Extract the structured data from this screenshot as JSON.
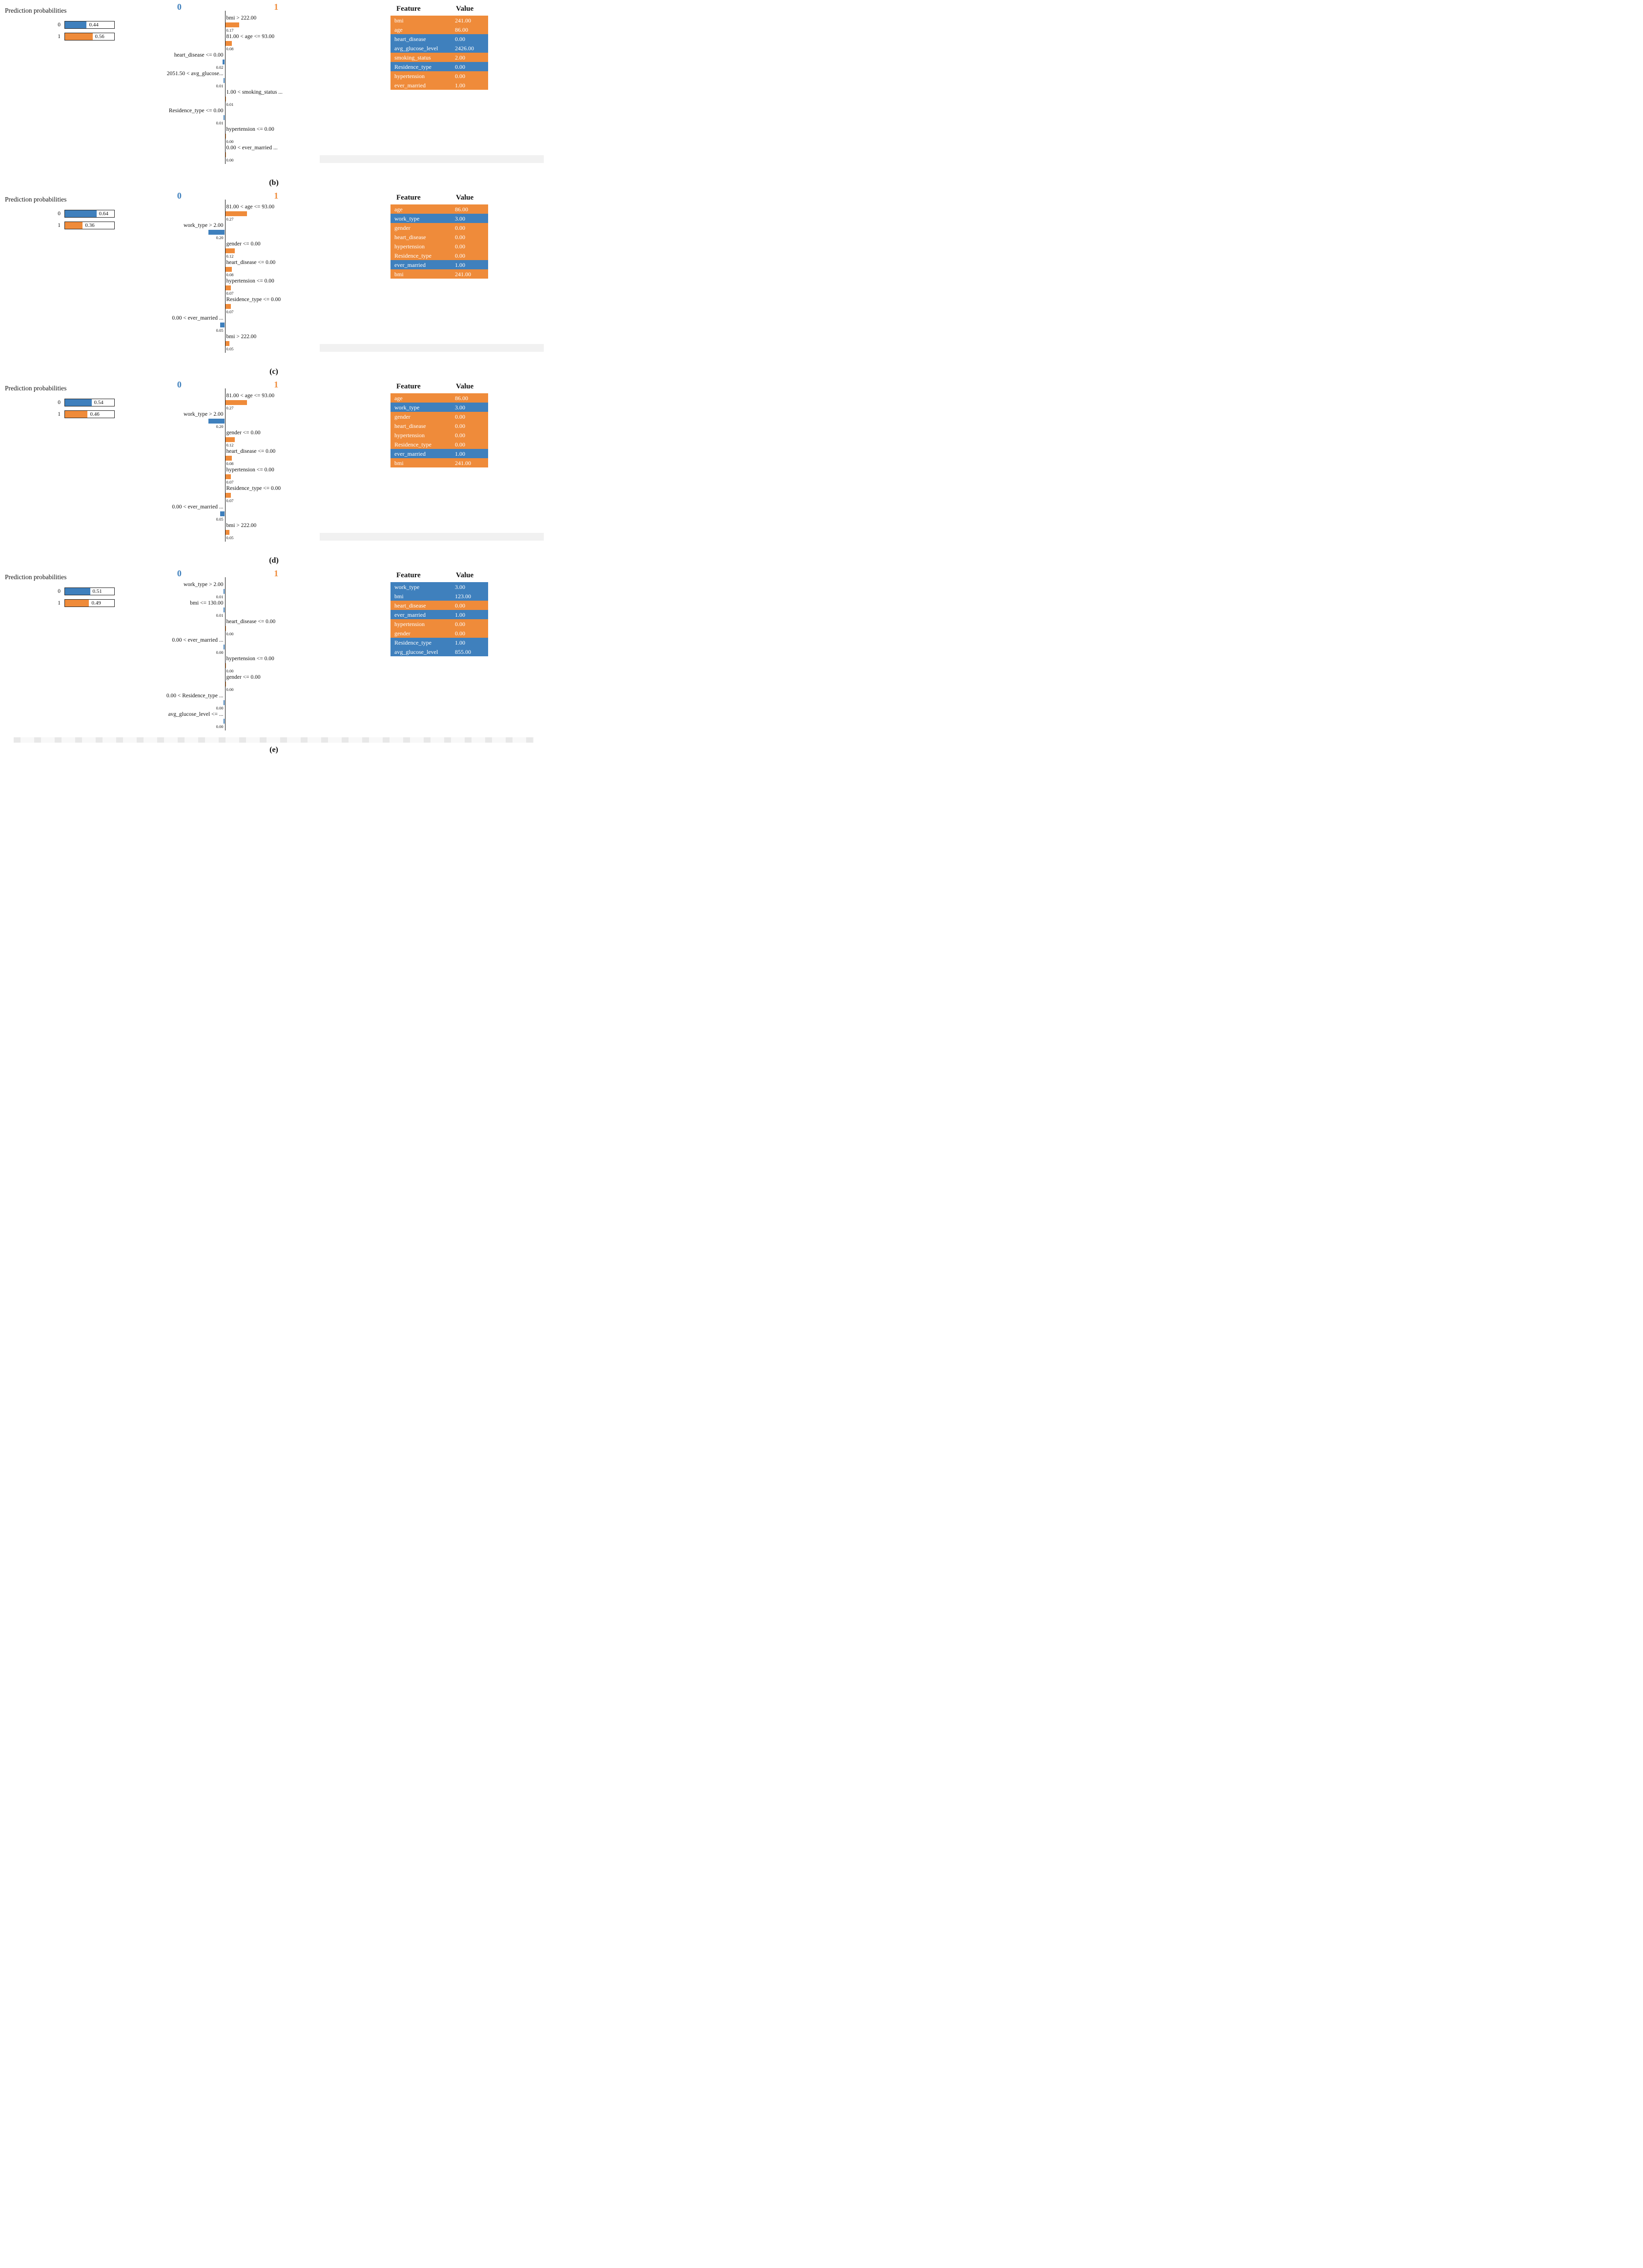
{
  "colors": {
    "blue": "#3f80bd",
    "orange": "#ef8b3a"
  },
  "chart_data": {
    "type": "bar",
    "panels": [
      {
        "caption": "(b)",
        "prediction": {
          "title": "Prediction probabilities",
          "classes": [
            {
              "label": "0",
              "value": "0.44",
              "num": 0.44,
              "color": "blue"
            },
            {
              "label": "1",
              "value": "0.56",
              "num": 0.56,
              "color": "orange"
            }
          ]
        },
        "axis": {
          "left_header": "0",
          "right_header": "1"
        },
        "contributions": [
          {
            "label": "bmi > 222.00",
            "value": "0.17",
            "weight": 0.17,
            "side": "right"
          },
          {
            "label": "81.00 < age <= 93.00",
            "value": "0.08",
            "weight": 0.08,
            "side": "right"
          },
          {
            "label": "heart_disease <= 0.00",
            "value": "0.02",
            "weight": 0.02,
            "side": "left"
          },
          {
            "label": "2051.50 < avg_glucose...",
            "value": "0.01",
            "weight": 0.01,
            "side": "left"
          },
          {
            "label": "1.00 < smoking_status ...",
            "value": "0.01",
            "weight": 0.01,
            "side": "right"
          },
          {
            "label": "Residence_type <= 0.00",
            "value": "0.01",
            "weight": 0.01,
            "side": "left"
          },
          {
            "label": "hypertension <= 0.00",
            "value": "0.00",
            "weight": 0,
            "side": "right"
          },
          {
            "label": "0.00 < ever_married ...",
            "value": "0.00",
            "weight": 0,
            "side": "right"
          }
        ],
        "table": {
          "feature_header": "Feature",
          "value_header": "Value",
          "rows": [
            {
              "feature": "bmi",
              "value": "241.00",
              "color": "orange"
            },
            {
              "feature": "age",
              "value": "86.00",
              "color": "orange"
            },
            {
              "feature": "heart_disease",
              "value": "0.00",
              "color": "blue"
            },
            {
              "feature": "avg_glucose_level",
              "value": "2426.00",
              "color": "blue"
            },
            {
              "feature": "smoking_status",
              "value": "2.00",
              "color": "orange"
            },
            {
              "feature": "Residence_type",
              "value": "0.00",
              "color": "blue"
            },
            {
              "feature": "hypertension",
              "value": "0.00",
              "color": "orange"
            },
            {
              "feature": "ever_married",
              "value": "1.00",
              "color": "orange"
            }
          ]
        }
      },
      {
        "caption": "(c)",
        "prediction": {
          "title": "Prediction probabilities",
          "classes": [
            {
              "label": "0",
              "value": "0.64",
              "num": 0.64,
              "color": "blue"
            },
            {
              "label": "1",
              "value": "0.36",
              "num": 0.36,
              "color": "orange"
            }
          ]
        },
        "axis": {
          "left_header": "0",
          "right_header": "1"
        },
        "contributions": [
          {
            "label": "81.00 < age <= 93.00",
            "value": "0.27",
            "weight": 0.27,
            "side": "right"
          },
          {
            "label": "work_type > 2.00",
            "value": "0.20",
            "weight": 0.2,
            "side": "left"
          },
          {
            "label": "gender <= 0.00",
            "value": "0.12",
            "weight": 0.12,
            "side": "right"
          },
          {
            "label": "heart_disease <= 0.00",
            "value": "0.08",
            "weight": 0.08,
            "side": "right"
          },
          {
            "label": "hypertension <= 0.00",
            "value": "0.07",
            "weight": 0.07,
            "side": "right"
          },
          {
            "label": "Residence_type <= 0.00",
            "value": "0.07",
            "weight": 0.07,
            "side": "right"
          },
          {
            "label": "0.00 < ever_married ...",
            "value": "0.05",
            "weight": 0.05,
            "side": "left"
          },
          {
            "label": "bmi > 222.00",
            "value": "0.05",
            "weight": 0.05,
            "side": "right"
          }
        ],
        "table": {
          "feature_header": "Feature",
          "value_header": "Value",
          "rows": [
            {
              "feature": "age",
              "value": "86.00",
              "color": "orange"
            },
            {
              "feature": "work_type",
              "value": "3.00",
              "color": "blue"
            },
            {
              "feature": "gender",
              "value": "0.00",
              "color": "orange"
            },
            {
              "feature": "heart_disease",
              "value": "0.00",
              "color": "orange"
            },
            {
              "feature": "hypertension",
              "value": "0.00",
              "color": "orange"
            },
            {
              "feature": "Residence_type",
              "value": "0.00",
              "color": "orange"
            },
            {
              "feature": "ever_married",
              "value": "1.00",
              "color": "blue"
            },
            {
              "feature": "bmi",
              "value": "241.00",
              "color": "orange"
            }
          ]
        }
      },
      {
        "caption": "(d)",
        "prediction": {
          "title": "Prediction probabilities",
          "classes": [
            {
              "label": "0",
              "value": "0.54",
              "num": 0.54,
              "color": "blue"
            },
            {
              "label": "1",
              "value": "0.46",
              "num": 0.46,
              "color": "orange"
            }
          ]
        },
        "axis": {
          "left_header": "0",
          "right_header": "1"
        },
        "contributions": [
          {
            "label": "81.00 < age <= 93.00",
            "value": "0.27",
            "weight": 0.27,
            "side": "right"
          },
          {
            "label": "work_type > 2.00",
            "value": "0.20",
            "weight": 0.2,
            "side": "left"
          },
          {
            "label": "gender <= 0.00",
            "value": "0.12",
            "weight": 0.12,
            "side": "right"
          },
          {
            "label": "heart_disease <= 0.00",
            "value": "0.08",
            "weight": 0.08,
            "side": "right"
          },
          {
            "label": "hypertension <= 0.00",
            "value": "0.07",
            "weight": 0.07,
            "side": "right"
          },
          {
            "label": "Residence_type <= 0.00",
            "value": "0.07",
            "weight": 0.07,
            "side": "right"
          },
          {
            "label": "0.00 < ever_married ...",
            "value": "0.05",
            "weight": 0.05,
            "side": "left"
          },
          {
            "label": "bmi > 222.00",
            "value": "0.05",
            "weight": 0.05,
            "side": "right"
          }
        ],
        "table": {
          "feature_header": "Feature",
          "value_header": "Value",
          "rows": [
            {
              "feature": "age",
              "value": "86.00",
              "color": "orange"
            },
            {
              "feature": "work_type",
              "value": "3.00",
              "color": "blue"
            },
            {
              "feature": "gender",
              "value": "0.00",
              "color": "orange"
            },
            {
              "feature": "heart_disease",
              "value": "0.00",
              "color": "orange"
            },
            {
              "feature": "hypertension",
              "value": "0.00",
              "color": "orange"
            },
            {
              "feature": "Residence_type",
              "value": "0.00",
              "color": "orange"
            },
            {
              "feature": "ever_married",
              "value": "1.00",
              "color": "blue"
            },
            {
              "feature": "bmi",
              "value": "241.00",
              "color": "orange"
            }
          ]
        }
      },
      {
        "caption": "(e)",
        "prediction": {
          "title": "Prediction probabilities",
          "classes": [
            {
              "label": "0",
              "value": "0.51",
              "num": 0.51,
              "color": "blue"
            },
            {
              "label": "1",
              "value": "0.49",
              "num": 0.49,
              "color": "orange"
            }
          ]
        },
        "axis": {
          "left_header": "0",
          "right_header": "1"
        },
        "contributions": [
          {
            "label": "work_type > 2.00",
            "value": "0.01",
            "weight": 0.01,
            "side": "left"
          },
          {
            "label": "bmi <= 130.00",
            "value": "0.01",
            "weight": 0.01,
            "side": "left"
          },
          {
            "label": "heart_disease <= 0.00",
            "value": "0.00",
            "weight": 0,
            "side": "right"
          },
          {
            "label": "0.00 < ever_married ...",
            "value": "0.00",
            "weight": 0,
            "side": "left"
          },
          {
            "label": "hypertension <= 0.00",
            "value": "0.00",
            "weight": 0,
            "side": "right"
          },
          {
            "label": "gender <= 0.00",
            "value": "0.00",
            "weight": 0,
            "side": "right"
          },
          {
            "label": "0.00 < Residence_type ...",
            "value": "0.00",
            "weight": 0,
            "side": "left"
          },
          {
            "label": "avg_glucose_level <= ...",
            "value": "0.00",
            "weight": 0,
            "side": "left"
          }
        ],
        "table": {
          "feature_header": "Feature",
          "value_header": "Value",
          "rows": [
            {
              "feature": "work_type",
              "value": "3.00",
              "color": "blue"
            },
            {
              "feature": "bmi",
              "value": "123.00",
              "color": "blue"
            },
            {
              "feature": "heart_disease",
              "value": "0.00",
              "color": "orange"
            },
            {
              "feature": "ever_married",
              "value": "1.00",
              "color": "blue"
            },
            {
              "feature": "hypertension",
              "value": "0.00",
              "color": "orange"
            },
            {
              "feature": "gender",
              "value": "0.00",
              "color": "orange"
            },
            {
              "feature": "Residence_type",
              "value": "1.00",
              "color": "blue"
            },
            {
              "feature": "avg_glucose_level",
              "value": "855.00",
              "color": "blue"
            }
          ]
        }
      }
    ]
  }
}
